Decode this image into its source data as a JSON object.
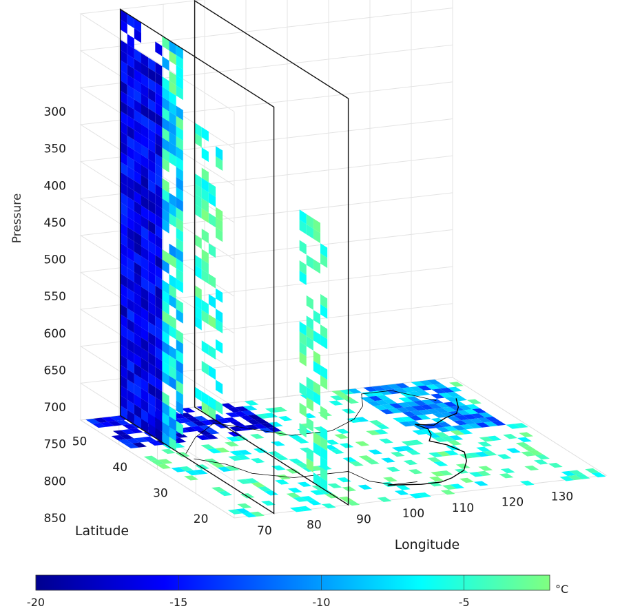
{
  "chart_data": {
    "type": "3d-slice-heatmap",
    "zlabel": "Pressure",
    "xlabel": "Longitude",
    "ylabel": "Latitude",
    "z_ticks": [
      "300",
      "350",
      "400",
      "450",
      "500",
      "550",
      "600",
      "650",
      "700",
      "750",
      "800",
      "850"
    ],
    "lon_ticks": [
      "70",
      "80",
      "90",
      "100",
      "110",
      "120",
      "130"
    ],
    "lat_ticks": [
      "20",
      "30",
      "40",
      "50"
    ],
    "z_range": [
      300,
      850
    ],
    "lon_range": [
      65,
      140
    ],
    "lat_range": [
      17,
      55
    ],
    "slice_longitudes": [
      73,
      88
    ],
    "colorbar": {
      "unit": "°C",
      "ticks": [
        "-20",
        "-15",
        "-10",
        "-5"
      ],
      "range": [
        -20,
        -2
      ],
      "colors": [
        "#00008f",
        "#0000ff",
        "#0080ff",
        "#00ffff",
        "#80ff80"
      ]
    },
    "grid": true
  }
}
